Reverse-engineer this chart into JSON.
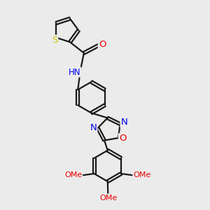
{
  "background_color": "#ebebeb",
  "atom_colors": {
    "C": "#1a1a1a",
    "N": "#0000ee",
    "O": "#ee0000",
    "S": "#cccc00",
    "H": "#1a1a1a"
  },
  "bond_lw": 1.6,
  "figsize": [
    3.0,
    3.0
  ],
  "dpi": 100,
  "xlim": [
    0,
    10
  ],
  "ylim": [
    0,
    10.5
  ]
}
